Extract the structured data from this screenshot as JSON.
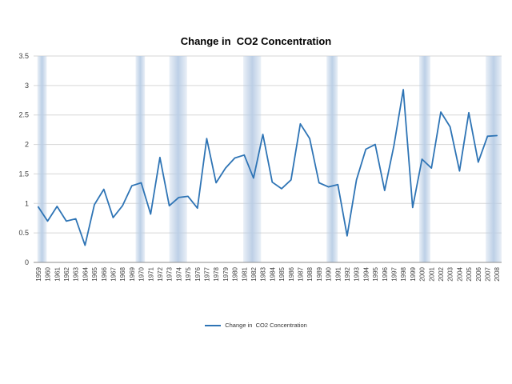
{
  "chart_data": {
    "type": "line",
    "title": "Change in  CO2 Concentration",
    "legend_label": "Change in  CO2 Concentration",
    "xlabel": "",
    "ylabel": "",
    "ylim": [
      0,
      3.5
    ],
    "ytick_step": 0.5,
    "grid": true,
    "legend_position": "bottom-center",
    "line_color": "#2E74B5",
    "band_color": "#B9CDE5",
    "grid_color": "#D6D6D6",
    "axis_color": "#8C8C8C",
    "tick_label_color": "#404040",
    "x": [
      1959,
      1960,
      1961,
      1962,
      1963,
      1964,
      1965,
      1966,
      1967,
      1968,
      1969,
      1970,
      1971,
      1972,
      1973,
      1974,
      1975,
      1976,
      1977,
      1978,
      1979,
      1980,
      1981,
      1982,
      1983,
      1984,
      1985,
      1986,
      1987,
      1988,
      1989,
      1990,
      1991,
      1992,
      1993,
      1994,
      1995,
      1996,
      1997,
      1998,
      1999,
      2000,
      2001,
      2002,
      2003,
      2004,
      2005,
      2006,
      2007,
      2008
    ],
    "series": [
      {
        "name": "Change in  CO2 Concentration",
        "values": [
          0.94,
          0.7,
          0.95,
          0.7,
          0.74,
          0.29,
          0.98,
          1.24,
          0.76,
          0.96,
          1.3,
          1.35,
          0.82,
          1.78,
          0.96,
          1.1,
          1.12,
          0.92,
          2.1,
          1.35,
          1.6,
          1.77,
          1.82,
          1.43,
          2.17,
          1.36,
          1.25,
          1.4,
          2.35,
          2.1,
          1.35,
          1.28,
          1.32,
          0.45,
          1.4,
          1.92,
          2.0,
          1.22,
          1.98,
          2.93,
          0.93,
          1.75,
          1.6,
          2.55,
          2.3,
          1.55,
          2.54,
          1.7,
          2.14,
          2.15
        ]
      }
    ],
    "highlight_bands": [
      [
        1958.9,
        1959.9
      ],
      [
        1969.4,
        1970.4
      ],
      [
        1973.0,
        1974.9
      ],
      [
        1980.9,
        1982.8
      ],
      [
        1989.8,
        1991.0
      ],
      [
        1999.7,
        2000.9
      ],
      [
        2006.8,
        2008.6
      ]
    ]
  }
}
